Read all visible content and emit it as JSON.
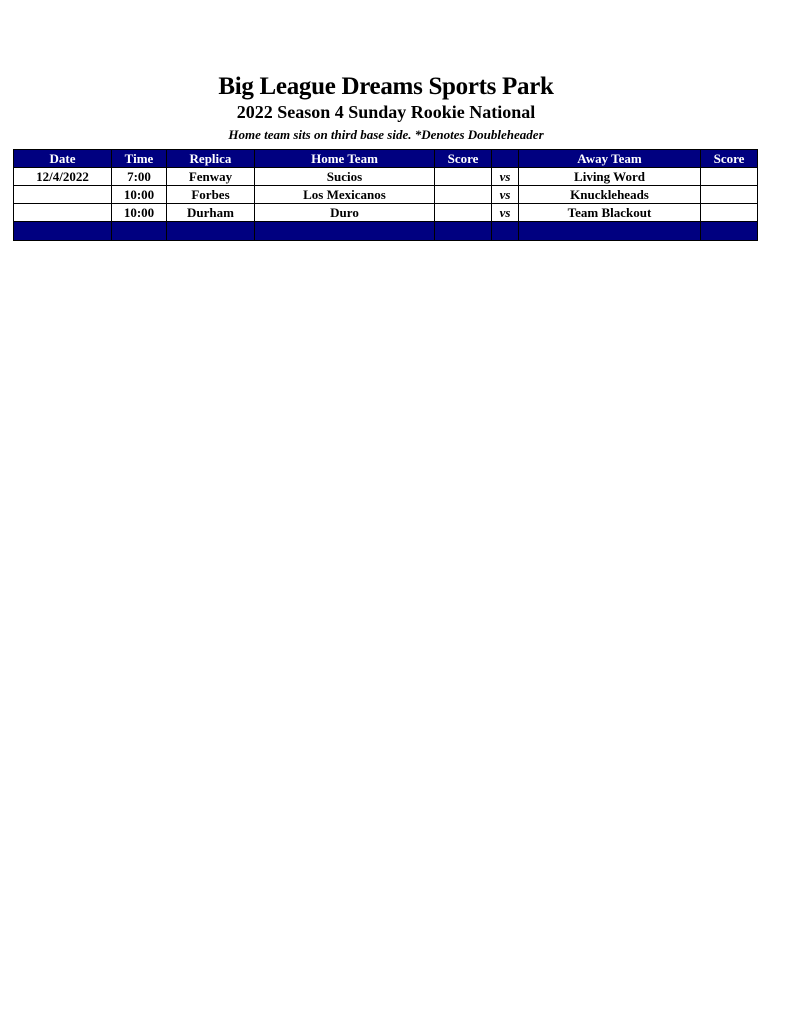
{
  "title": "Big League Dreams Sports Park",
  "subtitle": "2022 Season 4 Sunday Rookie National",
  "note": "Home team sits on third base side.  *Denotes Doubleheader",
  "colors": {
    "header_bg": "#000080",
    "header_text": "#ffffff"
  },
  "columns": [
    "Date",
    "Time",
    "Replica",
    "Home Team",
    "Score",
    "",
    "Away Team",
    "Score"
  ],
  "rows": [
    {
      "date": "12/4/2022",
      "time": "7:00",
      "replica": "Fenway",
      "home": "Sucios",
      "home_score": "",
      "vs": "vs",
      "away": "Living Word",
      "away_score": ""
    },
    {
      "date": "",
      "time": "10:00",
      "replica": "Forbes",
      "home": "Los Mexicanos",
      "home_score": "",
      "vs": "vs",
      "away": "Knuckleheads",
      "away_score": ""
    },
    {
      "date": "",
      "time": "10:00",
      "replica": "Durham",
      "home": "Duro",
      "home_score": "",
      "vs": "vs",
      "away": "Team Blackout",
      "away_score": ""
    }
  ]
}
